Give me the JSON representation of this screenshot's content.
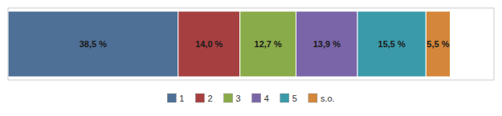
{
  "chart_data": {
    "type": "bar",
    "orientation": "horizontal",
    "stacked": true,
    "data_labels": true,
    "tick_labels": false,
    "legend": "bottom",
    "xlim": [
      0,
      110
    ],
    "series": [
      {
        "name": "1",
        "color": "#4e6f96",
        "values": [
          38.5
        ],
        "value_labels": [
          "38,5 %"
        ]
      },
      {
        "name": "2",
        "color": "#a64040",
        "values": [
          14.0
        ],
        "value_labels": [
          "14,0 %"
        ]
      },
      {
        "name": "3",
        "color": "#8aab49",
        "values": [
          12.7
        ],
        "value_labels": [
          "12,7 %"
        ]
      },
      {
        "name": "4",
        "color": "#7a65a8",
        "values": [
          13.9
        ],
        "value_labels": [
          "13,9 %"
        ]
      },
      {
        "name": "5",
        "color": "#3a9aaa",
        "values": [
          15.5
        ],
        "value_labels": [
          "15,5 %"
        ]
      },
      {
        "name": "s.o.",
        "color": "#d4873a",
        "values": [
          5.5
        ],
        "value_labels": [
          "5,5 %"
        ]
      }
    ]
  }
}
